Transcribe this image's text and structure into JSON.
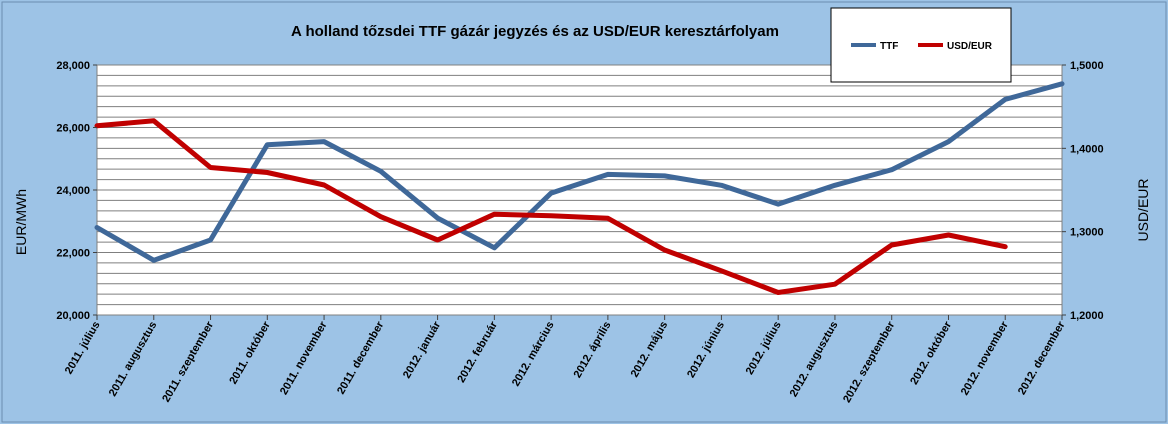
{
  "chart_data": {
    "type": "line",
    "title": "A holland tőzsdei TTF gázár jegyzés és az USD/EUR keresztárfolyam",
    "categories": [
      "2011. július",
      "2011. augusztus",
      "2011. szeptember",
      "2011. október",
      "2011. november",
      "2011. december",
      "2012. január",
      "2012. február",
      "2012. március",
      "2012. április",
      "2012. május",
      "2012. június",
      "2012. július",
      "2012. augusztus",
      "2012. szeptember",
      "2012. október",
      "2012. november",
      "2012. december"
    ],
    "series": [
      {
        "name": "TTF",
        "axis": "left",
        "color": "#3F6899",
        "values": [
          22800,
          21750,
          22400,
          25450,
          25550,
          24600,
          23100,
          22150,
          23900,
          24500,
          24450,
          24150,
          23550,
          24150,
          24650,
          25550,
          26900,
          27400
        ]
      },
      {
        "name": "USD/EUR",
        "axis": "right",
        "color": "#C00000",
        "values": [
          1.427,
          1.433,
          1.377,
          1.371,
          1.356,
          1.318,
          1.29,
          1.321,
          1.319,
          1.316,
          1.278,
          1.253,
          1.227,
          1.237,
          1.284,
          1.296,
          1.282,
          null
        ]
      }
    ],
    "ylabel_left": "EUR/MWh",
    "ylabel_right": "USD/EUR",
    "ylim_left": [
      20000,
      28000
    ],
    "ylim_right": [
      1.2,
      1.5
    ],
    "yticks_left": [
      "20,000",
      "22,000",
      "24,000",
      "26,000",
      "28,000"
    ],
    "yticks_right": [
      "1,2000",
      "1,3000",
      "1,4000",
      "1,5000"
    ],
    "grid": true,
    "legend_position": "top-right"
  }
}
